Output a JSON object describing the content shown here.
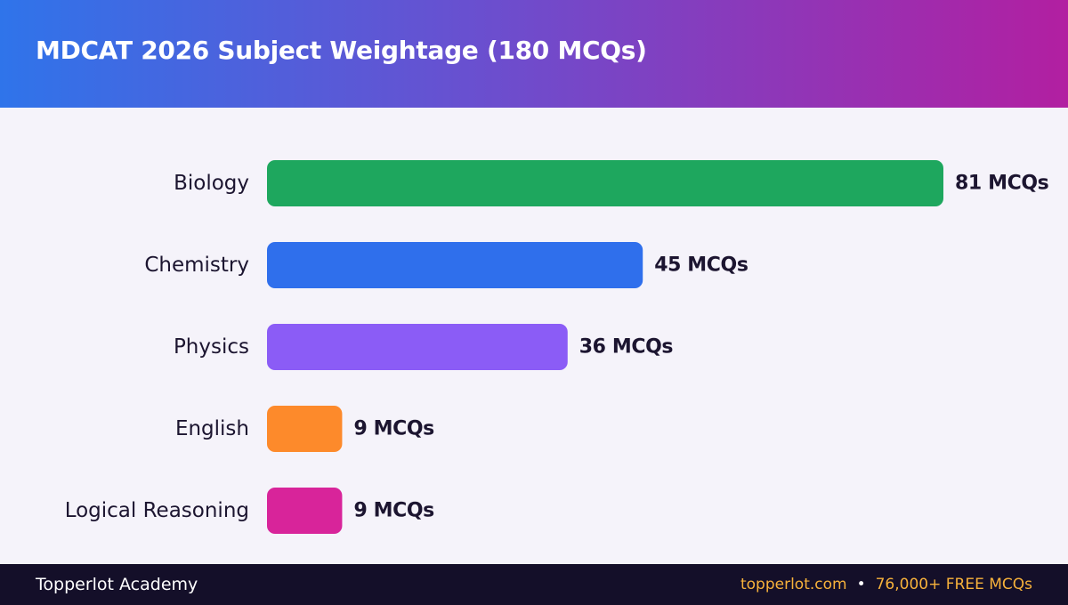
{
  "header": {
    "title": "MDCAT 2026 Subject Weightage (180 MCQs)"
  },
  "chart_data": {
    "type": "bar",
    "orientation": "horizontal",
    "title": "MDCAT 2026 Subject Weightage (180 MCQs)",
    "categories": [
      "Biology",
      "Chemistry",
      "Physics",
      "English",
      "Logical Reasoning"
    ],
    "values": [
      81,
      45,
      36,
      9,
      9
    ],
    "data_labels": [
      "81 MCQs",
      "45 MCQs",
      "36 MCQs",
      "9 MCQs",
      "9 MCQs"
    ],
    "colors": [
      "#1ea75e",
      "#2f6fec",
      "#8b5cf6",
      "#fd8a2b",
      "#d8249a"
    ],
    "xlim": [
      0,
      81
    ],
    "grid": false,
    "legend": "none"
  },
  "footer": {
    "brand": "Topperlot Academy",
    "site": "topperlot.com",
    "separator": "•",
    "tagline": "76,000+ FREE MCQs"
  }
}
